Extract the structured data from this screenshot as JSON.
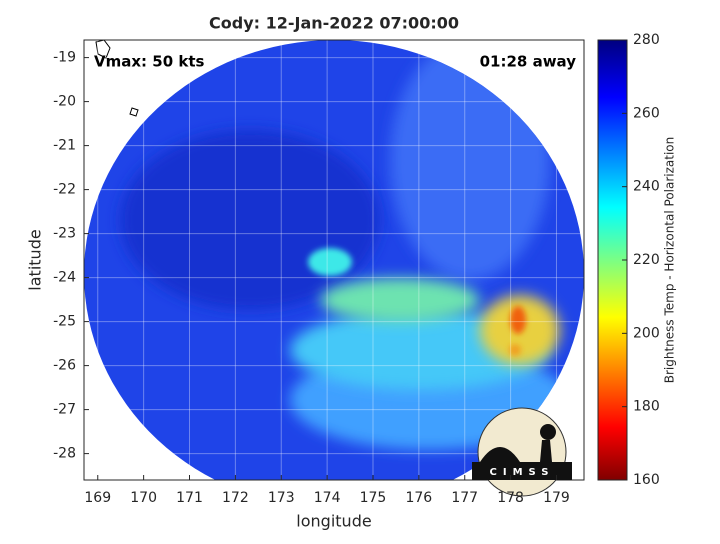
{
  "chart_data": {
    "type": "image-map",
    "title": "Cody: 12-Jan-2022 07:00:00",
    "xlabel": "longitude",
    "ylabel": "latitude",
    "xlim": [
      168.7,
      179.6
    ],
    "ylim": [
      -28.6,
      -18.6
    ],
    "xticks": [
      169,
      170,
      171,
      172,
      173,
      174,
      175,
      176,
      177,
      178,
      179
    ],
    "yticks": [
      -28,
      -27,
      -26,
      -25,
      -24,
      -23,
      -22,
      -21,
      -20,
      -19
    ],
    "grid": true,
    "annotations": [
      "Vmax: 50 kts",
      "01:28 away"
    ],
    "colorbar": {
      "label": "Brightness Temp - Horizontal Polarization",
      "lim": [
        160,
        280
      ],
      "ticks": [
        160,
        180,
        200,
        220,
        240,
        260,
        280
      ],
      "colormap": "jet"
    },
    "logo_text": "CIMSS"
  }
}
